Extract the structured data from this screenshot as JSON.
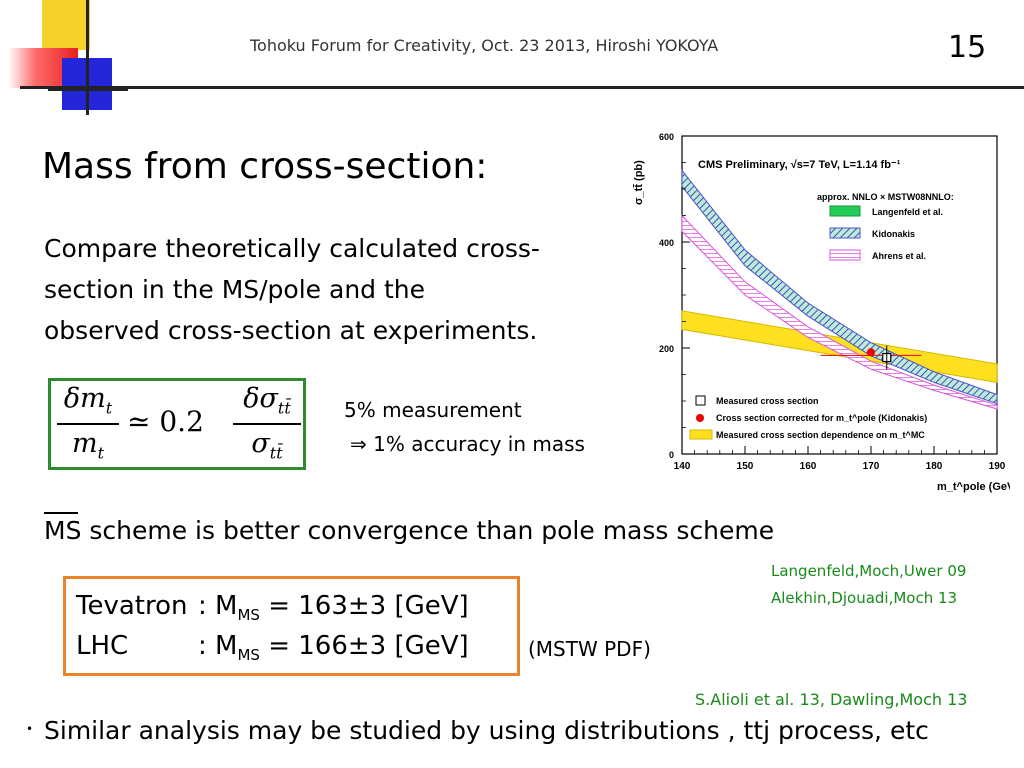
{
  "header": {
    "text": "Tohoku Forum for Creativity, Oct. 23 2013, Hiroshi YOKOYA",
    "page_number": "15"
  },
  "slide": {
    "title": "Mass from cross-section:",
    "intro_lines": [
      "Compare theoretically calculated cross-",
      "section in the MS/pole and the",
      "observed cross-section at experiments."
    ],
    "formula": {
      "num1": "δm",
      "num1_sub": "t",
      "den1": "m",
      "den1_sub": "t",
      "relation": "≃ 0.2",
      "num2": "δσ",
      "num2_sub": "tt̄",
      "den2": "σ",
      "den2_sub": "tt̄"
    },
    "note_line1": "5% measurement",
    "note_line2": "⇒ 1% accuracy in mass",
    "scheme_text": "MS scheme is better convergence than pole mass scheme",
    "refs_top": [
      "Langenfeld,Moch,Uwer 09",
      "Alekhin,Djouadi,Moch 13"
    ],
    "results": [
      {
        "label": "Tevatron",
        "sep": ": M",
        "sub": "MS",
        "value": " = 163±3 [GeV]"
      },
      {
        "label": "LHC",
        "sep": ": M",
        "sub": "MS",
        "value": " = 166±3 [GeV]"
      }
    ],
    "pdf_note": "(MSTW PDF)",
    "ref_bottom": "S.Alioli et al. 13, Dawling,Moch 13",
    "bullet": "•",
    "bullet_text": "Similar analysis may be studied by using distributions , ttj process, etc"
  },
  "chart_data": {
    "type": "line",
    "title": "CMS Preliminary, √s=7 TeV, L=1.14 fb⁻¹",
    "xlabel": "m_t^pole (GeV)",
    "ylabel": "σ_tt̄ (pb)",
    "xlim": [
      140,
      190
    ],
    "ylim": [
      0,
      600
    ],
    "xticks": [
      "140",
      "150",
      "160",
      "170",
      "180",
      "190"
    ],
    "yticks": [
      "0",
      "200",
      "400",
      "600"
    ],
    "legend_top_title": "approx. NNLO × MSTW08NNLO:",
    "series": [
      {
        "name": "Langenfeld et al.",
        "color": "#22cc55",
        "x": [
          140,
          150,
          160,
          170,
          180,
          190
        ],
        "y_low": [
          510,
          360,
          265,
          190,
          140,
          100
        ],
        "y_high": [
          530,
          380,
          280,
          205,
          150,
          110
        ]
      },
      {
        "name": "Kidonakis",
        "color": "#4a55c8",
        "x": [
          140,
          150,
          160,
          170,
          180,
          190
        ],
        "y_low": [
          505,
          355,
          260,
          185,
          135,
          95
        ],
        "y_high": [
          535,
          385,
          285,
          210,
          155,
          112
        ]
      },
      {
        "name": "Ahrens et al.",
        "color": "#dd55dd",
        "x": [
          140,
          150,
          160,
          170,
          180,
          190
        ],
        "y_low": [
          420,
          300,
          220,
          160,
          120,
          85
        ],
        "y_high": [
          450,
          325,
          240,
          175,
          130,
          92
        ]
      }
    ],
    "measured_band": {
      "name": "Measured cross section dependence on m_t^MC",
      "color": "#ffe020",
      "x": [
        140,
        190
      ],
      "y_low": [
        235,
        135
      ],
      "y_high": [
        270,
        170
      ]
    },
    "points": [
      {
        "name": "Measured cross section",
        "x": 172.5,
        "y": 182,
        "marker": "open-square"
      },
      {
        "name": "Cross section corrected for m_t^pole (Kidonakis)",
        "x": 170,
        "y": 192,
        "marker": "red-dot"
      }
    ],
    "legend_bottom": [
      "Measured cross section",
      "Cross section corrected for m_t^pole (Kidonakis)",
      "Measured cross section dependence on m_t^MC"
    ],
    "grid": false
  }
}
